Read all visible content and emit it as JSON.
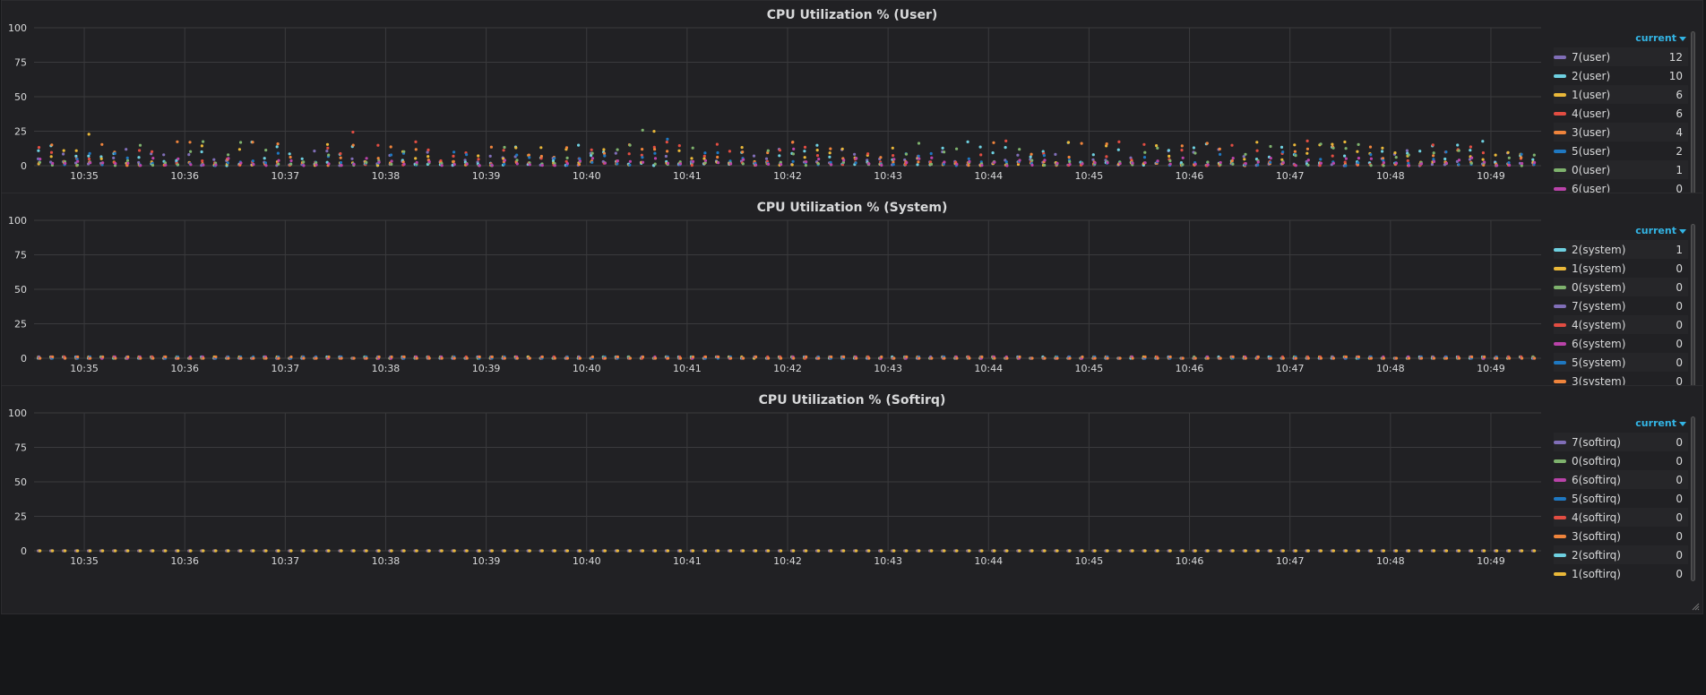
{
  "grid_color": "#3a3a3d",
  "axis_text_color": "#d8d9da",
  "chart_data": [
    {
      "type": "scatter",
      "title": "CPU Utilization % (User)",
      "ylim": [
        0,
        100
      ],
      "yticks": [
        "0",
        "25",
        "50",
        "75",
        "100"
      ],
      "x_range": [
        "10:34:30",
        "10:49:30"
      ],
      "xticks": [
        "10:35",
        "10:36",
        "10:37",
        "10:38",
        "10:39",
        "10:40",
        "10:41",
        "10:42",
        "10:43",
        "10:44",
        "10:45",
        "10:46",
        "10:47",
        "10:48",
        "10:49"
      ],
      "grid": true,
      "legend_position": "right",
      "legend_header": "current",
      "series": [
        {
          "name": "7(user)",
          "color": "#806eb7",
          "current": "12",
          "typical_range": [
            0,
            12
          ]
        },
        {
          "name": "2(user)",
          "color": "#6ed0e0",
          "current": "10",
          "typical_range": [
            0,
            18
          ]
        },
        {
          "name": "1(user)",
          "color": "#eab839",
          "current": "6",
          "typical_range": [
            0,
            18
          ]
        },
        {
          "name": "4(user)",
          "color": "#e24d42",
          "current": "6",
          "typical_range": [
            0,
            18
          ]
        },
        {
          "name": "3(user)",
          "color": "#ef843c",
          "current": "4",
          "typical_range": [
            0,
            18
          ]
        },
        {
          "name": "5(user)",
          "color": "#1f78c1",
          "current": "2",
          "typical_range": [
            0,
            10
          ]
        },
        {
          "name": "0(user)",
          "color": "#7eb26d",
          "current": "1",
          "typical_range": [
            0,
            18
          ]
        },
        {
          "name": "6(user)",
          "color": "#ba43a9",
          "current": "0",
          "typical_range": [
            0,
            6
          ]
        }
      ]
    },
    {
      "type": "scatter",
      "title": "CPU Utilization % (System)",
      "ylim": [
        0,
        100
      ],
      "yticks": [
        "0",
        "25",
        "50",
        "75",
        "100"
      ],
      "x_range": [
        "10:34:30",
        "10:49:30"
      ],
      "xticks": [
        "10:35",
        "10:36",
        "10:37",
        "10:38",
        "10:39",
        "10:40",
        "10:41",
        "10:42",
        "10:43",
        "10:44",
        "10:45",
        "10:46",
        "10:47",
        "10:48",
        "10:49"
      ],
      "grid": true,
      "legend_position": "right",
      "legend_header": "current",
      "series": [
        {
          "name": "2(system)",
          "color": "#6ed0e0",
          "current": "1",
          "typical_range": [
            0,
            1
          ]
        },
        {
          "name": "1(system)",
          "color": "#eab839",
          "current": "0",
          "typical_range": [
            0,
            1
          ]
        },
        {
          "name": "0(system)",
          "color": "#7eb26d",
          "current": "0",
          "typical_range": [
            0,
            1
          ]
        },
        {
          "name": "7(system)",
          "color": "#806eb7",
          "current": "0",
          "typical_range": [
            0,
            1
          ]
        },
        {
          "name": "4(system)",
          "color": "#e24d42",
          "current": "0",
          "typical_range": [
            0,
            1
          ]
        },
        {
          "name": "6(system)",
          "color": "#ba43a9",
          "current": "0",
          "typical_range": [
            0,
            1
          ]
        },
        {
          "name": "5(system)",
          "color": "#1f78c1",
          "current": "0",
          "typical_range": [
            0,
            1
          ]
        },
        {
          "name": "3(system)",
          "color": "#ef843c",
          "current": "0",
          "typical_range": [
            0,
            1
          ]
        }
      ]
    },
    {
      "type": "scatter",
      "title": "CPU Utilization % (Softirq)",
      "ylim": [
        0,
        100
      ],
      "yticks": [
        "0",
        "25",
        "50",
        "75",
        "100"
      ],
      "x_range": [
        "10:34:30",
        "10:49:30"
      ],
      "xticks": [
        "10:35",
        "10:36",
        "10:37",
        "10:38",
        "10:39",
        "10:40",
        "10:41",
        "10:42",
        "10:43",
        "10:44",
        "10:45",
        "10:46",
        "10:47",
        "10:48",
        "10:49"
      ],
      "grid": true,
      "legend_position": "right",
      "legend_header": "current",
      "series": [
        {
          "name": "7(softirq)",
          "color": "#806eb7",
          "current": "0",
          "typical_range": [
            0,
            0
          ]
        },
        {
          "name": "0(softirq)",
          "color": "#7eb26d",
          "current": "0",
          "typical_range": [
            0,
            0
          ]
        },
        {
          "name": "6(softirq)",
          "color": "#ba43a9",
          "current": "0",
          "typical_range": [
            0,
            0
          ]
        },
        {
          "name": "5(softirq)",
          "color": "#1f78c1",
          "current": "0",
          "typical_range": [
            0,
            0
          ]
        },
        {
          "name": "4(softirq)",
          "color": "#e24d42",
          "current": "0",
          "typical_range": [
            0,
            0
          ]
        },
        {
          "name": "3(softirq)",
          "color": "#ef843c",
          "current": "0",
          "typical_range": [
            0,
            0
          ]
        },
        {
          "name": "2(softirq)",
          "color": "#6ed0e0",
          "current": "0",
          "typical_range": [
            0,
            0
          ]
        },
        {
          "name": "1(softirq)",
          "color": "#eab839",
          "current": "0",
          "typical_range": [
            0,
            0
          ]
        }
      ]
    }
  ]
}
